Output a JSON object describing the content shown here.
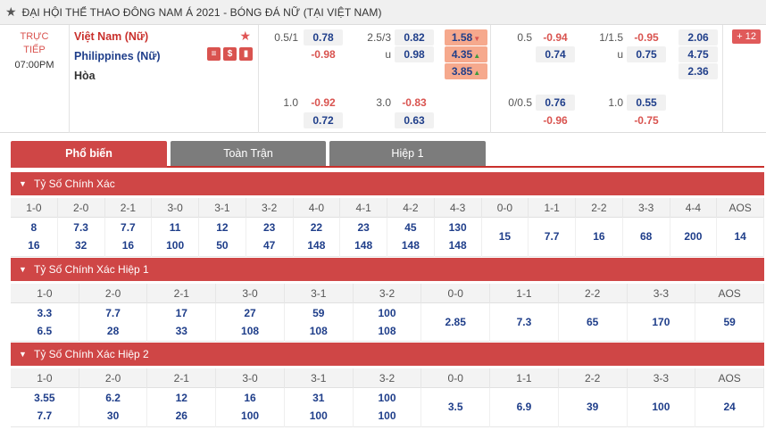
{
  "league": {
    "star_icon": "star-icon",
    "title": "ĐẠI HỘI THỂ THAO ĐÔNG NAM Á 2021 - BÓNG ĐÁ NỮ (TẠI VIỆT NAM)"
  },
  "match": {
    "status_line1": "TRỰC",
    "status_line2": "TIẾP",
    "time": "07:00PM",
    "home": "Việt Nam (Nữ)",
    "away": "Philippines (Nữ)",
    "draw": "Hòa",
    "more_count": "12",
    "full_time": {
      "hdp1_line": "0.5/1",
      "hdp1_home": "0.78",
      "hdp1_away": "-0.98",
      "ou1_line": "2.5/3",
      "ou1_over": "0.82",
      "ou1_u": "u",
      "ou1_under": "0.98",
      "x12_home": "1.58",
      "x12_away": "4.35",
      "x12_draw": "3.85",
      "hdp2_line": "1.0",
      "hdp2_home": "-0.92",
      "hdp2_away": "0.72",
      "ou2_line": "3.0",
      "ou2_over": "-0.83",
      "ou2_under": "0.63"
    },
    "first_half": {
      "hdp1_line": "0.5",
      "hdp1_home": "-0.94",
      "hdp1_away": "0.74",
      "ou1_line": "1/1.5",
      "ou1_over": "-0.95",
      "ou1_u": "u",
      "ou1_under": "0.75",
      "x12_home": "2.06",
      "x12_away": "4.75",
      "x12_draw": "2.36",
      "hdp2_line": "0/0.5",
      "hdp2_home": "0.76",
      "hdp2_away": "-0.96",
      "ou2_line": "1.0",
      "ou2_over": "0.55",
      "ou2_under": "-0.75"
    }
  },
  "tabs": [
    "Phổ biến",
    "Toàn Trận",
    "Hiệp 1"
  ],
  "sections": [
    {
      "title": "Tỷ Số Chính Xác",
      "headers": [
        "1-0",
        "2-0",
        "2-1",
        "3-0",
        "3-1",
        "3-2",
        "4-0",
        "4-1",
        "4-2",
        "4-3",
        "0-0",
        "1-1",
        "2-2",
        "3-3",
        "4-4",
        "AOS"
      ],
      "top": [
        "8",
        "7.3",
        "7.7",
        "11",
        "12",
        "23",
        "22",
        "23",
        "45",
        "130",
        "15",
        "7.7",
        "16",
        "68",
        "200",
        "14"
      ],
      "bottom": [
        "16",
        "32",
        "16",
        "100",
        "50",
        "47",
        "148",
        "148",
        "148",
        "148",
        "",
        "",
        "",
        "",
        "",
        ""
      ]
    },
    {
      "title": "Tỷ Số Chính Xác Hiệp 1",
      "headers": [
        "1-0",
        "2-0",
        "2-1",
        "3-0",
        "3-1",
        "3-2",
        "0-0",
        "1-1",
        "2-2",
        "3-3",
        "AOS"
      ],
      "top": [
        "3.3",
        "7.7",
        "17",
        "27",
        "59",
        "100",
        "2.85",
        "7.3",
        "65",
        "170",
        "59"
      ],
      "bottom": [
        "6.5",
        "28",
        "33",
        "108",
        "108",
        "108",
        "",
        "",
        "",
        "",
        ""
      ]
    },
    {
      "title": "Tỷ Số Chính Xác Hiệp 2",
      "headers": [
        "1-0",
        "2-0",
        "2-1",
        "3-0",
        "3-1",
        "3-2",
        "0-0",
        "1-1",
        "2-2",
        "3-3",
        "AOS"
      ],
      "top": [
        "3.55",
        "6.2",
        "12",
        "16",
        "31",
        "100",
        "3.5",
        "6.9",
        "39",
        "100",
        "24"
      ],
      "bottom": [
        "7.7",
        "30",
        "26",
        "100",
        "100",
        "100",
        "",
        "",
        "",
        "",
        ""
      ]
    }
  ],
  "colors": {
    "accent": "#cf4646",
    "home": "#c9302c",
    "away": "#1f3e8a",
    "highlight": "#f6a98d"
  }
}
